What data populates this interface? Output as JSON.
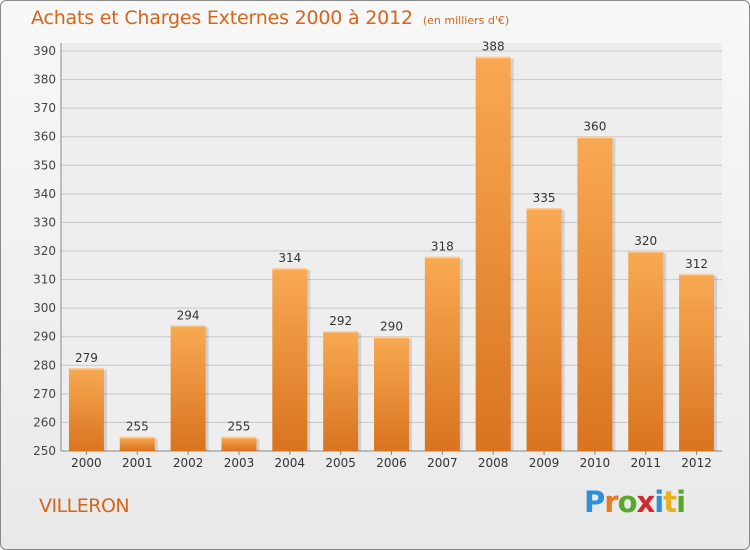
{
  "header": {
    "title": "Achats et Charges Externes 2000 à 2012",
    "units": "(en milliers d'€)"
  },
  "footer": {
    "place": "VILLERON",
    "brand_name": "Proxiti"
  },
  "colors": {
    "accent": "#d4651b",
    "bar_light": "#f9a953",
    "bar_dark": "#d9741f"
  },
  "chart_data": {
    "type": "bar",
    "title": "Achats et Charges Externes 2000 à 2012",
    "subtitle": "(en milliers d'€)",
    "categories": [
      "2000",
      "2001",
      "2002",
      "2003",
      "2004",
      "2005",
      "2006",
      "2007",
      "2008",
      "2009",
      "2010",
      "2011",
      "2012"
    ],
    "values": [
      279,
      255,
      294,
      255,
      314,
      292,
      290,
      318,
      388,
      335,
      360,
      320,
      312
    ],
    "ylim": [
      250,
      390
    ],
    "yticks": [
      250,
      260,
      270,
      280,
      290,
      300,
      310,
      320,
      330,
      340,
      350,
      360,
      370,
      380,
      390
    ],
    "grid": true,
    "data_labels": true,
    "xlabel": "",
    "ylabel": ""
  }
}
